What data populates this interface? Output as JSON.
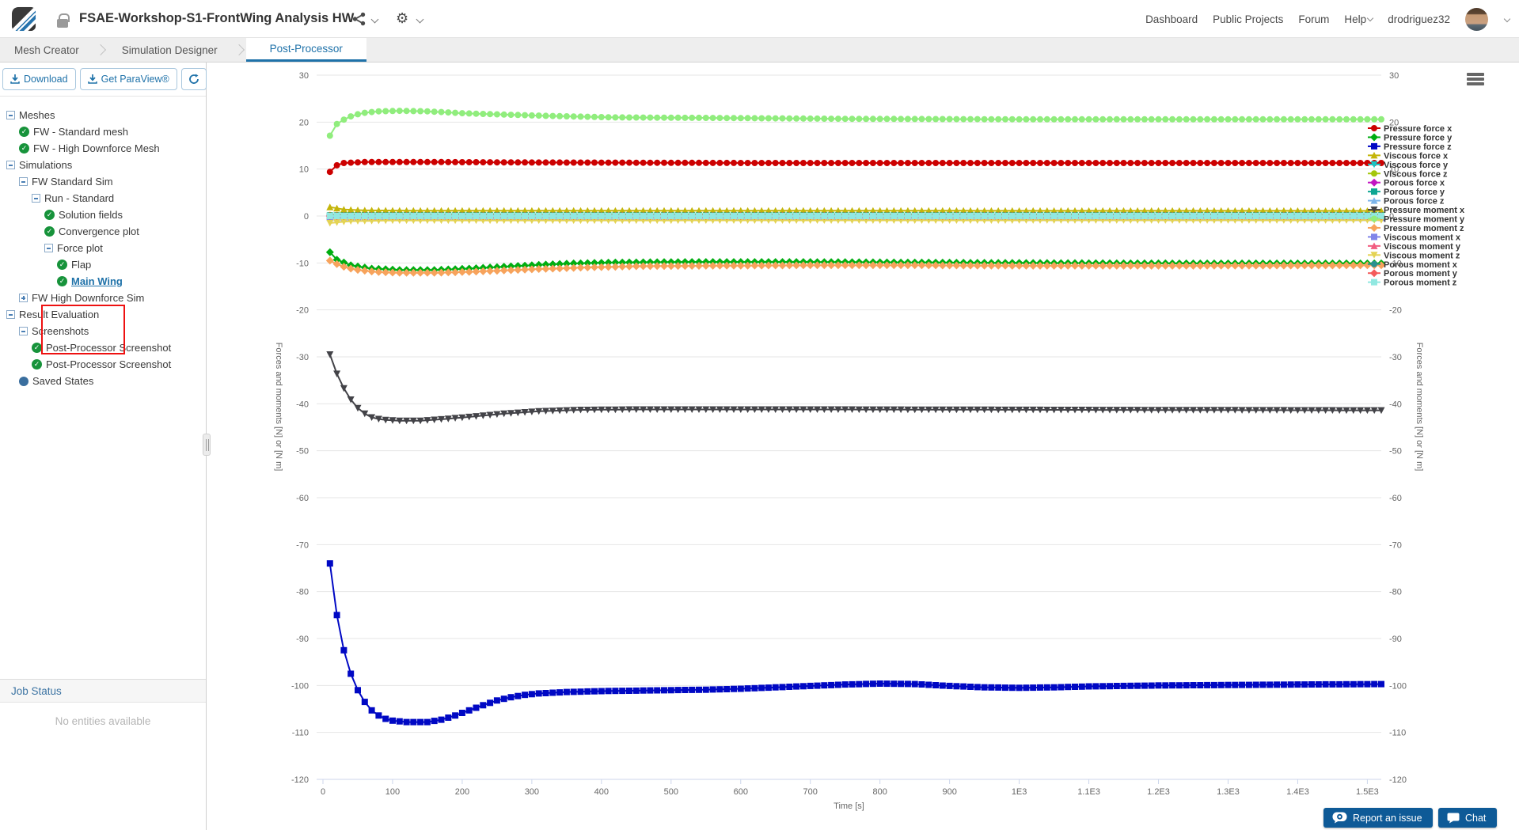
{
  "header": {
    "title": "FSAE-Workshop-S1-FrontWing Analysis HW",
    "nav": {
      "dashboard": "Dashboard",
      "public_projects": "Public Projects",
      "forum": "Forum",
      "help": "Help",
      "username": "drodriguez32"
    }
  },
  "tabs": {
    "mesh_creator": "Mesh Creator",
    "simulation_designer": "Simulation Designer",
    "post_processor": "Post-Processor",
    "active": "Post-Processor"
  },
  "sidebar": {
    "toolbar": {
      "download": "Download",
      "get_paraview": "Get ParaView®"
    },
    "tree": [
      {
        "level": 0,
        "icon": "minus",
        "label": "Meshes"
      },
      {
        "level": 1,
        "icon": "check",
        "label": "FW - Standard mesh"
      },
      {
        "level": 1,
        "icon": "check",
        "label": "FW - High Downforce Mesh"
      },
      {
        "level": 0,
        "icon": "minus",
        "label": "Simulations"
      },
      {
        "level": 1,
        "icon": "minus",
        "label": "FW Standard Sim"
      },
      {
        "level": 2,
        "icon": "minus",
        "label": "Run - Standard"
      },
      {
        "level": 3,
        "icon": "check",
        "label": "Solution fields"
      },
      {
        "level": 3,
        "icon": "check",
        "label": "Convergence plot"
      },
      {
        "level": 3,
        "icon": "minus",
        "label": "Force plot"
      },
      {
        "level": 4,
        "icon": "check",
        "label": "Flap"
      },
      {
        "level": 4,
        "icon": "check",
        "label": "Main Wing",
        "selected": true
      },
      {
        "level": 1,
        "icon": "plus",
        "label": "FW High Downforce Sim"
      },
      {
        "level": 0,
        "icon": "minus",
        "label": "Result Evaluation"
      },
      {
        "level": 1,
        "icon": "minus",
        "label": "Screenshots"
      },
      {
        "level": 2,
        "icon": "check",
        "label": "Post-Processor Screenshot"
      },
      {
        "level": 2,
        "icon": "check",
        "label": "Post-Processor Screenshot"
      },
      {
        "level": 1,
        "icon": "dot",
        "label": "Saved States"
      }
    ],
    "job_status": {
      "title": "Job Status",
      "empty": "No entities available"
    }
  },
  "chart": {
    "chart_data": {
      "type": "line",
      "title": "",
      "xlabel": "Time [s]",
      "ylabel_left": "Forces and moments [N] or [N m]",
      "ylabel_right": "Forces and moments [N] or [N m]",
      "xlim": [
        0,
        1520
      ],
      "ylim": [
        -120,
        30
      ],
      "y_tick_step": 10,
      "sample_step": 10,
      "grid": true,
      "legend_position": "right",
      "x_ticks": [
        {
          "v": 0,
          "label": "0"
        },
        {
          "v": 100,
          "label": "100"
        },
        {
          "v": 200,
          "label": "200"
        },
        {
          "v": 300,
          "label": "300"
        },
        {
          "v": 400,
          "label": "400"
        },
        {
          "v": 500,
          "label": "500"
        },
        {
          "v": 600,
          "label": "600"
        },
        {
          "v": 700,
          "label": "700"
        },
        {
          "v": 800,
          "label": "800"
        },
        {
          "v": 900,
          "label": "900"
        },
        {
          "v": 1000,
          "label": "1E3"
        },
        {
          "v": 1100,
          "label": "1.1E3"
        },
        {
          "v": 1200,
          "label": "1.2E3"
        },
        {
          "v": 1300,
          "label": "1.3E3"
        },
        {
          "v": 1400,
          "label": "1.4E3"
        },
        {
          "v": 1500,
          "label": "1.5E3"
        }
      ],
      "series": [
        {
          "name": "Pressure force x",
          "color": "#cc0000",
          "marker": "circle",
          "points": [
            [
              10,
              9.4
            ],
            [
              20,
              10.8
            ],
            [
              30,
              11.3
            ],
            [
              60,
              11.5
            ],
            [
              150,
              11.5
            ],
            [
              300,
              11.4
            ],
            [
              600,
              11.3
            ],
            [
              1000,
              11.3
            ],
            [
              1520,
              11.3
            ]
          ]
        },
        {
          "name": "Pressure force y",
          "color": "#00ad11",
          "marker": "diamond",
          "points": [
            [
              10,
              -7.7
            ],
            [
              20,
              -9.3
            ],
            [
              40,
              -10.5
            ],
            [
              70,
              -11.2
            ],
            [
              110,
              -11.5
            ],
            [
              160,
              -11.5
            ],
            [
              210,
              -11.2
            ],
            [
              260,
              -10.8
            ],
            [
              310,
              -10.4
            ],
            [
              360,
              -10.1
            ],
            [
              420,
              -9.9
            ],
            [
              520,
              -9.8
            ],
            [
              700,
              -9.8
            ],
            [
              850,
              -9.9
            ],
            [
              1000,
              -10.0
            ],
            [
              1250,
              -10.1
            ],
            [
              1520,
              -10.1
            ]
          ]
        },
        {
          "name": "Pressure force z",
          "color": "#0008c4",
          "marker": "square",
          "points": [
            [
              10,
              -74
            ],
            [
              20,
              -85
            ],
            [
              30,
              -92.5
            ],
            [
              40,
              -97.5
            ],
            [
              50,
              -101
            ],
            [
              60,
              -103.5
            ],
            [
              70,
              -105.3
            ],
            [
              80,
              -106.4
            ],
            [
              90,
              -107.1
            ],
            [
              100,
              -107.5
            ],
            [
              120,
              -107.8
            ],
            [
              150,
              -107.8
            ],
            [
              170,
              -107.3
            ],
            [
              190,
              -106.4
            ],
            [
              210,
              -105.3
            ],
            [
              230,
              -104.2
            ],
            [
              250,
              -103.2
            ],
            [
              270,
              -102.5
            ],
            [
              290,
              -102
            ],
            [
              310,
              -101.7
            ],
            [
              350,
              -101.4
            ],
            [
              400,
              -101.2
            ],
            [
              450,
              -101.1
            ],
            [
              500,
              -101
            ],
            [
              550,
              -100.9
            ],
            [
              600,
              -100.7
            ],
            [
              650,
              -100.4
            ],
            [
              700,
              -100.1
            ],
            [
              750,
              -99.8
            ],
            [
              800,
              -99.6
            ],
            [
              850,
              -99.7
            ],
            [
              900,
              -100.1
            ],
            [
              950,
              -100.4
            ],
            [
              1000,
              -100.5
            ],
            [
              1050,
              -100.4
            ],
            [
              1100,
              -100.2
            ],
            [
              1150,
              -100.1
            ],
            [
              1200,
              -100
            ],
            [
              1300,
              -99.9
            ],
            [
              1400,
              -99.8
            ],
            [
              1520,
              -99.7
            ]
          ]
        },
        {
          "name": "Viscous force x",
          "color": "#c4b50a",
          "marker": "triangle",
          "points": [
            [
              10,
              1.9
            ],
            [
              30,
              1.4
            ],
            [
              60,
              1.2
            ],
            [
              120,
              1.15
            ],
            [
              1520,
              1.1
            ]
          ]
        },
        {
          "name": "Viscous force y",
          "color": "#18c5c5",
          "marker": "triangle-down",
          "points": [
            [
              10,
              -0.2
            ],
            [
              1520,
              -0.2
            ]
          ]
        },
        {
          "name": "Viscous force z",
          "color": "#a4c70c",
          "marker": "circle",
          "points": [
            [
              10,
              0.2
            ],
            [
              1520,
              0.2
            ]
          ]
        },
        {
          "name": "Porous force x",
          "color": "#c214c2",
          "marker": "diamond",
          "points": [
            [
              10,
              0
            ],
            [
              1520,
              0
            ]
          ]
        },
        {
          "name": "Porous force y",
          "color": "#0fa693",
          "marker": "square",
          "points": [
            [
              10,
              0.1
            ],
            [
              1520,
              0.1
            ]
          ]
        },
        {
          "name": "Porous force z",
          "color": "#7cb5ec",
          "marker": "triangle",
          "points": [
            [
              10,
              -0.1
            ],
            [
              1520,
              -0.1
            ]
          ]
        },
        {
          "name": "Pressure moment x",
          "color": "#434348",
          "marker": "triangle-down",
          "points": [
            [
              10,
              -29.5
            ],
            [
              20,
              -33.6
            ],
            [
              30,
              -36.7
            ],
            [
              40,
              -39.1
            ],
            [
              50,
              -40.9
            ],
            [
              60,
              -42.1
            ],
            [
              70,
              -42.9
            ],
            [
              85,
              -43.4
            ],
            [
              110,
              -43.6
            ],
            [
              140,
              -43.6
            ],
            [
              170,
              -43.3
            ],
            [
              210,
              -42.8
            ],
            [
              260,
              -42.1
            ],
            [
              310,
              -41.6
            ],
            [
              370,
              -41.3
            ],
            [
              450,
              -41.2
            ],
            [
              700,
              -41.2
            ],
            [
              1100,
              -41.3
            ],
            [
              1520,
              -41.4
            ]
          ]
        },
        {
          "name": "Pressure moment y",
          "color": "#90ed7d",
          "marker": "circle",
          "points": [
            [
              10,
              17.1
            ],
            [
              20,
              19.6
            ],
            [
              35,
              21.0
            ],
            [
              55,
              21.9
            ],
            [
              80,
              22.3
            ],
            [
              110,
              22.4
            ],
            [
              150,
              22.3
            ],
            [
              200,
              21.9
            ],
            [
              260,
              21.6
            ],
            [
              330,
              21.3
            ],
            [
              420,
              21.0
            ],
            [
              550,
              20.9
            ],
            [
              750,
              20.7
            ],
            [
              1000,
              20.6
            ],
            [
              1520,
              20.6
            ]
          ]
        },
        {
          "name": "Pressure moment z",
          "color": "#f7a35c",
          "marker": "diamond",
          "points": [
            [
              10,
              -9.5
            ],
            [
              25,
              -10.6
            ],
            [
              45,
              -11.4
            ],
            [
              75,
              -11.9
            ],
            [
              110,
              -12.1
            ],
            [
              160,
              -12.1
            ],
            [
              210,
              -11.9
            ],
            [
              260,
              -11.6
            ],
            [
              310,
              -11.3
            ],
            [
              370,
              -11.0
            ],
            [
              450,
              -10.7
            ],
            [
              550,
              -10.6
            ],
            [
              700,
              -10.5
            ],
            [
              850,
              -10.5
            ],
            [
              1000,
              -10.6
            ],
            [
              1250,
              -10.6
            ],
            [
              1520,
              -10.5
            ]
          ]
        },
        {
          "name": "Viscous moment x",
          "color": "#8085e9",
          "marker": "square",
          "points": [
            [
              10,
              -0.4
            ],
            [
              1520,
              -0.4
            ]
          ]
        },
        {
          "name": "Viscous moment y",
          "color": "#f15c80",
          "marker": "triangle",
          "points": [
            [
              10,
              0.1
            ],
            [
              1520,
              0.1
            ]
          ]
        },
        {
          "name": "Viscous moment z",
          "color": "#e4d354",
          "marker": "triangle-down",
          "points": [
            [
              10,
              -1.5
            ],
            [
              40,
              -1.1
            ],
            [
              100,
              -0.95
            ],
            [
              1520,
              -0.9
            ]
          ]
        },
        {
          "name": "Porous moment x",
          "color": "#2b908f",
          "marker": "circle",
          "points": [
            [
              10,
              0
            ],
            [
              1520,
              0
            ]
          ]
        },
        {
          "name": "Porous moment y",
          "color": "#f45b5b",
          "marker": "diamond",
          "points": [
            [
              10,
              0
            ],
            [
              1520,
              0
            ]
          ]
        },
        {
          "name": "Porous moment z",
          "color": "#91e8e1",
          "marker": "square",
          "points": [
            [
              10,
              0
            ],
            [
              1520,
              0
            ]
          ]
        }
      ]
    }
  },
  "footer": {
    "report": "Report an issue",
    "chat": "Chat"
  },
  "colors": {
    "accent": "#1f72a9",
    "button_blue": "#0e5a97",
    "annotation": "#ee1111",
    "check_green": "#17933b"
  }
}
